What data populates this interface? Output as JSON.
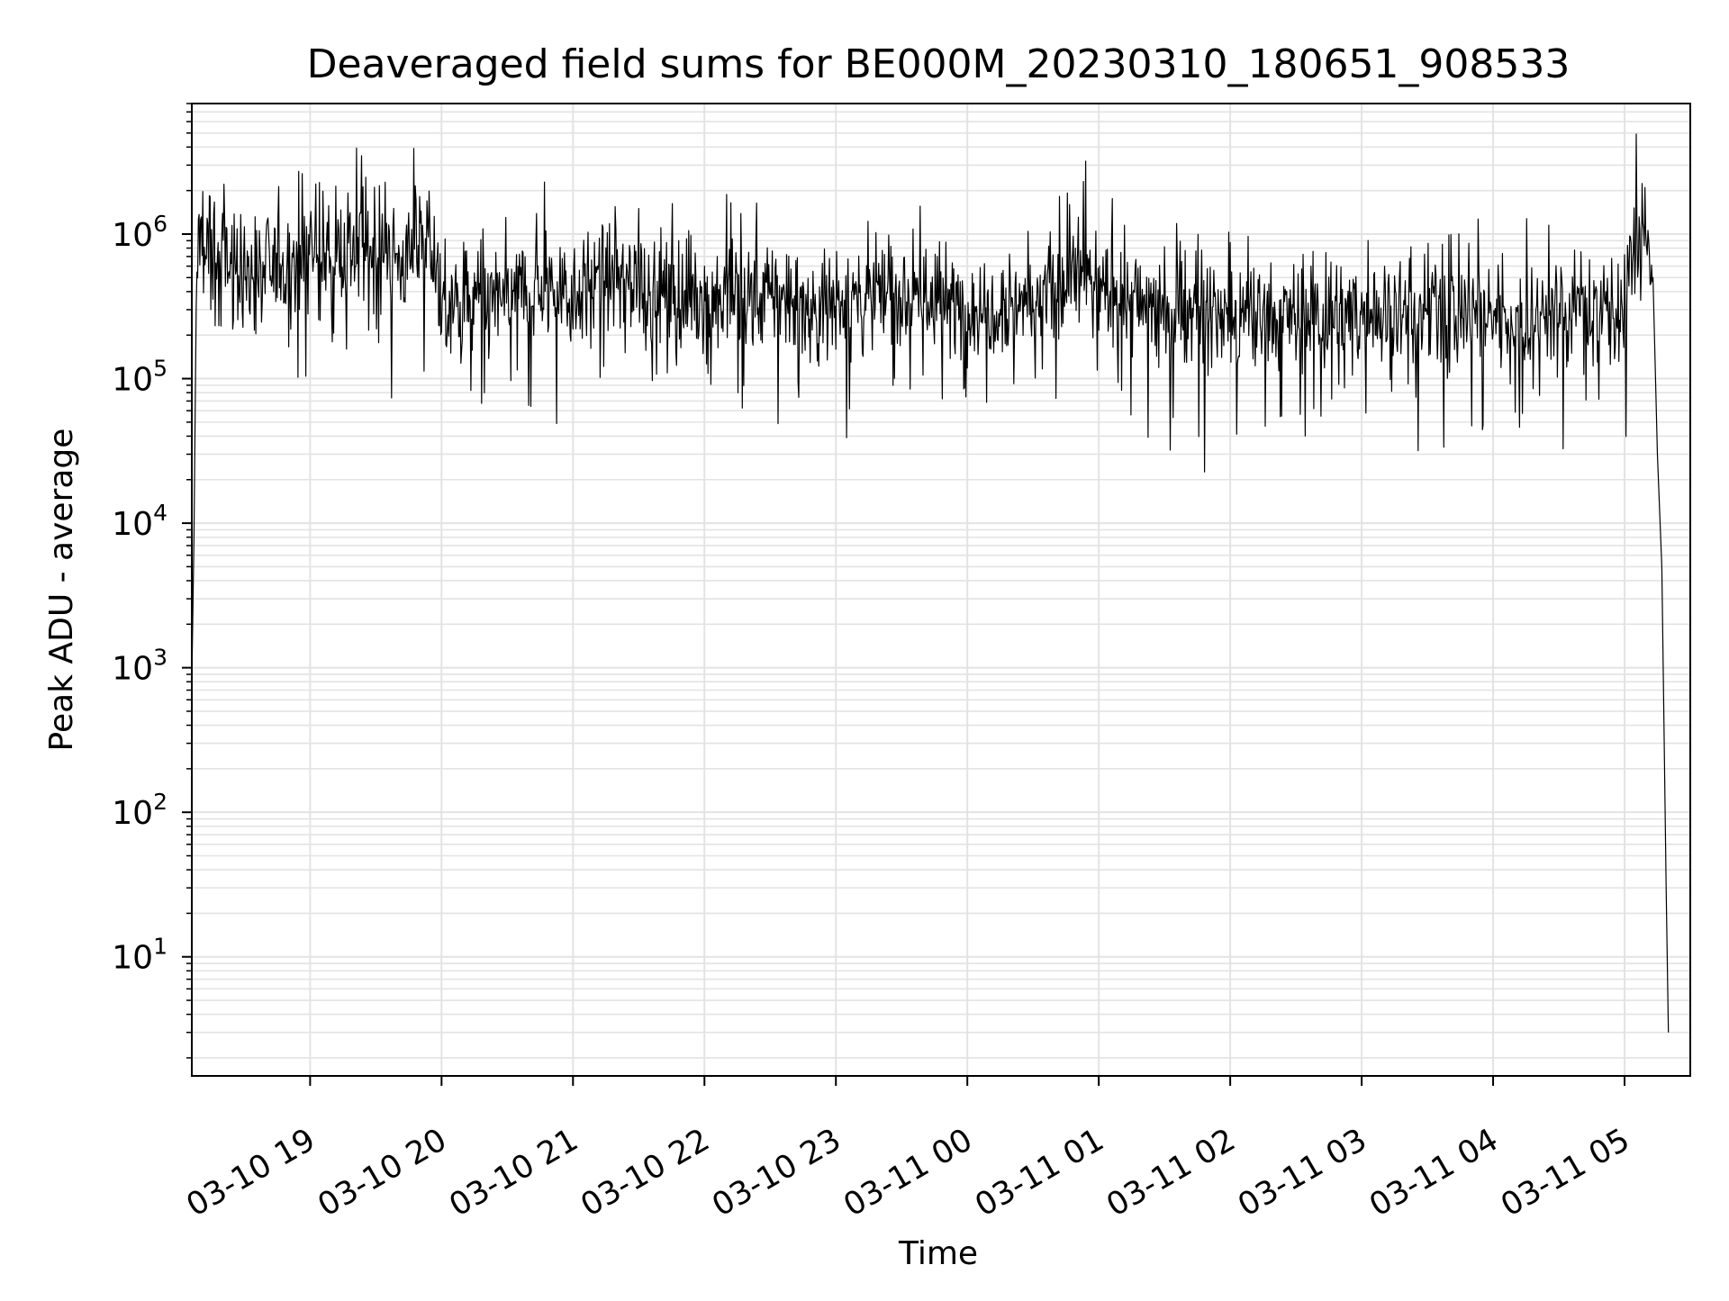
{
  "chart_data": {
    "type": "line",
    "title": "Deaveraged field sums for BE000M_20230310_180651_908533",
    "xlabel": "Time",
    "ylabel": "Peak ADU - average",
    "yscale": "log",
    "xlim": [
      "2023-03-10 18:06",
      "2023-03-11 05:30"
    ],
    "ylim": [
      1.5,
      8000000
    ],
    "grid": true,
    "line_color": "#000000",
    "grid_color": "#e3e3e3",
    "x_tick_labels": [
      "03-10 19",
      "03-10 20",
      "03-10 21",
      "03-10 22",
      "03-10 23",
      "03-11 00",
      "03-11 01",
      "03-11 02",
      "03-11 03",
      "03-11 04",
      "03-11 05"
    ],
    "x_ticks": [
      "2023-03-10 19:00",
      "2023-03-10 20:00",
      "2023-03-10 21:00",
      "2023-03-10 22:00",
      "2023-03-10 23:00",
      "2023-03-11 00:00",
      "2023-03-11 01:00",
      "2023-03-11 02:00",
      "2023-03-11 03:00",
      "2023-03-11 04:00",
      "2023-03-11 05:00"
    ],
    "y_tick_labels": [
      {
        "value": 10,
        "base": "10",
        "exponent": "1"
      },
      {
        "value": 100,
        "base": "10",
        "exponent": "2"
      },
      {
        "value": 1000,
        "base": "10",
        "exponent": "3"
      },
      {
        "value": 10000,
        "base": "10",
        "exponent": "4"
      },
      {
        "value": 100000,
        "base": "10",
        "exponent": "5"
      },
      {
        "value": 1000000,
        "base": "10",
        "exponent": "6"
      }
    ],
    "series": [
      {
        "x": [
          "2023-03-10 18:06",
          "2023-03-10 18:07",
          "2023-03-10 18:08",
          "2023-03-10 18:09",
          "2023-03-10 18:10",
          "2023-03-10 18:15",
          "2023-03-10 18:20",
          "2023-03-10 18:30",
          "2023-03-10 18:45",
          "2023-03-10 19:00",
          "2023-03-10 19:15",
          "2023-03-10 19:30",
          "2023-03-10 19:45",
          "2023-03-10 19:55",
          "2023-03-10 20:00",
          "2023-03-10 20:15",
          "2023-03-10 20:30",
          "2023-03-10 20:45",
          "2023-03-10 21:00",
          "2023-03-10 21:15",
          "2023-03-10 21:30",
          "2023-03-10 21:45",
          "2023-03-10 22:00",
          "2023-03-10 22:15",
          "2023-03-10 22:30",
          "2023-03-10 22:45",
          "2023-03-10 23:00",
          "2023-03-10 23:15",
          "2023-03-10 23:30",
          "2023-03-10 23:45",
          "2023-03-11 00:00",
          "2023-03-11 00:15",
          "2023-03-11 00:30",
          "2023-03-11 00:45",
          "2023-03-11 00:50",
          "2023-03-11 01:00",
          "2023-03-11 01:15",
          "2023-03-11 01:30",
          "2023-03-11 01:45",
          "2023-03-11 02:00",
          "2023-03-11 02:15",
          "2023-03-11 02:30",
          "2023-03-11 02:45",
          "2023-03-11 03:00",
          "2023-03-11 03:15",
          "2023-03-11 03:30",
          "2023-03-11 03:45",
          "2023-03-11 04:00",
          "2023-03-11 04:15",
          "2023-03-11 04:30",
          "2023-03-11 04:45",
          "2023-03-11 05:00",
          "2023-03-11 05:05",
          "2023-03-11 05:10",
          "2023-03-11 05:13",
          "2023-03-11 05:15",
          "2023-03-11 05:17",
          "2023-03-11 05:18",
          "2023-03-11 05:19",
          "2023-03-11 05:20"
        ],
        "y": [
          800,
          8000,
          200000,
          1000000,
          900000,
          600000,
          700000,
          500000,
          600000,
          700000,
          800000,
          700000,
          700000,
          900000,
          300000,
          350000,
          350000,
          450000,
          400000,
          500000,
          450000,
          400000,
          350000,
          350000,
          400000,
          300000,
          350000,
          350000,
          400000,
          350000,
          300000,
          350000,
          350000,
          400000,
          600000,
          400000,
          350000,
          300000,
          300000,
          250000,
          250000,
          280000,
          250000,
          280000,
          300000,
          280000,
          300000,
          280000,
          250000,
          300000,
          300000,
          350000,
          900000,
          1000000,
          500000,
          30000,
          5000,
          400,
          30,
          3
        ]
      }
    ]
  }
}
